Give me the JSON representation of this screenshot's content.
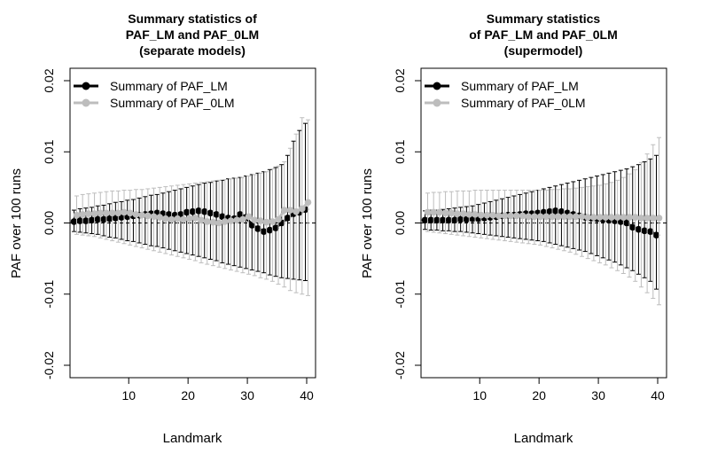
{
  "chart_data": [
    {
      "type": "line",
      "title": [
        "Summary statistics of",
        "PAF_LM and PAF_0LM",
        "(separate models)"
      ],
      "xlabel": "Landmark",
      "ylabel": "PAF over 100 runs",
      "xlim": [
        1,
        40
      ],
      "ylim": [
        -0.02,
        0.02
      ],
      "xticks": [
        "10",
        "20",
        "30",
        "40"
      ],
      "yticks": [
        "-0.02",
        "-0.01",
        "0.00",
        "0.01",
        "0.02"
      ],
      "legend_position": "top-left",
      "reference_line": 0,
      "series": [
        {
          "name": "Summary of PAF_LM",
          "color": "#000000",
          "x": [
            1,
            2,
            3,
            4,
            5,
            6,
            7,
            8,
            9,
            10,
            11,
            12,
            13,
            14,
            15,
            16,
            17,
            18,
            19,
            20,
            21,
            22,
            23,
            24,
            25,
            26,
            27,
            28,
            29,
            30,
            31,
            32,
            33,
            34,
            35,
            36,
            37,
            38,
            39,
            40
          ],
          "values": [
            0.0002,
            0.0003,
            0.0003,
            0.0004,
            0.0005,
            0.0005,
            0.0006,
            0.0007,
            0.0008,
            0.0009,
            0.001,
            0.0011,
            0.0012,
            0.0013,
            0.0014,
            0.0013,
            0.0012,
            0.0011,
            0.0012,
            0.0015,
            0.0016,
            0.0017,
            0.0016,
            0.0014,
            0.0012,
            0.0009,
            0.0007,
            0.0006,
            0.0012,
            0.0008,
            -0.0003,
            -0.0008,
            -0.0012,
            -0.001,
            -0.0007,
            0.0,
            0.0007,
            0.0013,
            0.0015,
            0.0019
          ],
          "lower": [
            -0.0012,
            -0.0013,
            -0.0014,
            -0.0015,
            -0.0016,
            -0.0018,
            -0.002,
            -0.0021,
            -0.0023,
            -0.0025,
            -0.0026,
            -0.0028,
            -0.003,
            -0.0032,
            -0.0033,
            -0.0035,
            -0.0037,
            -0.0039,
            -0.0041,
            -0.0043,
            -0.0045,
            -0.0047,
            -0.0049,
            -0.0051,
            -0.0053,
            -0.0056,
            -0.0058,
            -0.006,
            -0.0062,
            -0.0064,
            -0.0066,
            -0.0068,
            -0.007,
            -0.0073,
            -0.0075,
            -0.0077,
            -0.0078,
            -0.0079,
            -0.008,
            -0.0081
          ],
          "upper": [
            0.0018,
            0.002,
            0.0021,
            0.0022,
            0.0024,
            0.0025,
            0.0027,
            0.0029,
            0.003,
            0.0032,
            0.0033,
            0.0035,
            0.0037,
            0.0039,
            0.004,
            0.0042,
            0.0044,
            0.0046,
            0.0048,
            0.005,
            0.0052,
            0.0054,
            0.0056,
            0.0057,
            0.0059,
            0.006,
            0.0062,
            0.0063,
            0.0064,
            0.0066,
            0.0068,
            0.007,
            0.0072,
            0.0075,
            0.0078,
            0.0082,
            0.0095,
            0.0115,
            0.013,
            0.014
          ]
        },
        {
          "name": "Summary of PAF_0LM",
          "color": "#bdbdbd",
          "x": [
            1,
            2,
            3,
            4,
            5,
            6,
            7,
            8,
            9,
            10,
            11,
            12,
            13,
            14,
            15,
            16,
            17,
            18,
            19,
            20,
            21,
            22,
            23,
            24,
            25,
            26,
            27,
            28,
            29,
            30,
            31,
            32,
            33,
            34,
            35,
            36,
            37,
            38,
            39,
            40
          ],
          "values": [
            0.0011,
            0.0012,
            0.0013,
            0.0013,
            0.0014,
            0.0014,
            0.0014,
            0.0014,
            0.0015,
            0.0014,
            0.0012,
            0.0011,
            0.001,
            0.0009,
            0.0008,
            0.0006,
            0.0005,
            0.0006,
            0.0005,
            0.0006,
            0.0007,
            0.0004,
            0.0002,
            0.0001,
            0.0,
            0.0002,
            0.0003,
            0.0004,
            0.0005,
            0.0009,
            0.0004,
            0.0003,
            0.0001,
            0.0002,
            0.0005,
            0.0018,
            0.0018,
            0.0016,
            0.002,
            0.0029
          ],
          "lower": [
            -0.0016,
            -0.0017,
            -0.0018,
            -0.0019,
            -0.0021,
            -0.0023,
            -0.0025,
            -0.0027,
            -0.0029,
            -0.0031,
            -0.0033,
            -0.0035,
            -0.0037,
            -0.0039,
            -0.0041,
            -0.0043,
            -0.0045,
            -0.0047,
            -0.0049,
            -0.0051,
            -0.0053,
            -0.0056,
            -0.0058,
            -0.006,
            -0.0062,
            -0.0064,
            -0.0066,
            -0.0068,
            -0.007,
            -0.0072,
            -0.0074,
            -0.0077,
            -0.0079,
            -0.0082,
            -0.0086,
            -0.009,
            -0.0095,
            -0.0098,
            -0.01,
            -0.0102
          ],
          "upper": [
            0.0038,
            0.004,
            0.0041,
            0.0042,
            0.0043,
            0.0044,
            0.0045,
            0.0045,
            0.0046,
            0.0046,
            0.0047,
            0.0047,
            0.0048,
            0.0049,
            0.005,
            0.0051,
            0.0052,
            0.0053,
            0.0054,
            0.0055,
            0.0056,
            0.0057,
            0.0058,
            0.0059,
            0.006,
            0.0061,
            0.0062,
            0.0063,
            0.0064,
            0.0066,
            0.0068,
            0.007,
            0.0072,
            0.0076,
            0.008,
            0.0086,
            0.0105,
            0.0125,
            0.0148,
            0.0145
          ]
        }
      ]
    },
    {
      "type": "line",
      "title": [
        "Summary statistics",
        "of PAF_LM and PAF_0LM",
        "(supermodel)"
      ],
      "xlabel": "Landmark",
      "ylabel": "PAF over 100 runs",
      "xlim": [
        1,
        40
      ],
      "ylim": [
        -0.02,
        0.02
      ],
      "xticks": [
        "10",
        "20",
        "30",
        "40"
      ],
      "yticks": [
        "-0.02",
        "-0.01",
        "0.00",
        "0.01",
        "0.02"
      ],
      "legend_position": "top-left",
      "reference_line": 0,
      "series": [
        {
          "name": "Summary of PAF_LM",
          "color": "#000000",
          "x": [
            1,
            2,
            3,
            4,
            5,
            6,
            7,
            8,
            9,
            10,
            11,
            12,
            13,
            14,
            15,
            16,
            17,
            18,
            19,
            20,
            21,
            22,
            23,
            24,
            25,
            26,
            27,
            28,
            29,
            30,
            31,
            32,
            33,
            34,
            35,
            36,
            37,
            38,
            39,
            40
          ],
          "values": [
            0.0004,
            0.0004,
            0.0004,
            0.0004,
            0.0004,
            0.0004,
            0.0005,
            0.0005,
            0.0006,
            0.0006,
            0.0007,
            0.0008,
            0.0009,
            0.001,
            0.0011,
            0.0011,
            0.0012,
            0.0013,
            0.0013,
            0.0014,
            0.0015,
            0.0016,
            0.0017,
            0.0016,
            0.0014,
            0.0012,
            0.001,
            0.0008,
            0.0007,
            0.0006,
            0.0005,
            0.0004,
            0.0003,
            0.0002,
            0.0,
            -0.0006,
            -0.0009,
            -0.0011,
            -0.0012,
            -0.0017
          ],
          "lower": [
            -0.0009,
            -0.001,
            -0.001,
            -0.0011,
            -0.0011,
            -0.0012,
            -0.0012,
            -0.0013,
            -0.0014,
            -0.0015,
            -0.0016,
            -0.0017,
            -0.0018,
            -0.0019,
            -0.002,
            -0.0021,
            -0.0022,
            -0.0023,
            -0.0024,
            -0.0025,
            -0.0026,
            -0.0028,
            -0.003,
            -0.0032,
            -0.0034,
            -0.0036,
            -0.0038,
            -0.004,
            -0.0043,
            -0.0046,
            -0.0049,
            -0.0052,
            -0.0055,
            -0.0059,
            -0.0063,
            -0.0067,
            -0.0072,
            -0.0077,
            -0.0082,
            -0.0093
          ],
          "upper": [
            0.0017,
            0.0018,
            0.0018,
            0.0019,
            0.002,
            0.0021,
            0.0022,
            0.0023,
            0.0024,
            0.0026,
            0.0028,
            0.003,
            0.0032,
            0.0034,
            0.0036,
            0.0038,
            0.004,
            0.0042,
            0.0044,
            0.0046,
            0.0048,
            0.005,
            0.0052,
            0.0054,
            0.0056,
            0.0058,
            0.006,
            0.0062,
            0.0064,
            0.0066,
            0.0068,
            0.007,
            0.0072,
            0.0074,
            0.0076,
            0.0079,
            0.0082,
            0.0086,
            0.009,
            0.0095
          ]
        },
        {
          "name": "Summary of PAF_0LM",
          "color": "#bdbdbd",
          "x": [
            1,
            2,
            3,
            4,
            5,
            6,
            7,
            8,
            9,
            10,
            11,
            12,
            13,
            14,
            15,
            16,
            17,
            18,
            19,
            20,
            21,
            22,
            23,
            24,
            25,
            26,
            27,
            28,
            29,
            30,
            31,
            32,
            33,
            34,
            35,
            36,
            37,
            38,
            39,
            40
          ],
          "values": [
            0.0015,
            0.0015,
            0.0015,
            0.0014,
            0.0014,
            0.0013,
            0.0013,
            0.0012,
            0.0012,
            0.0011,
            0.0011,
            0.0011,
            0.001,
            0.001,
            0.001,
            0.001,
            0.001,
            0.0009,
            0.0009,
            0.0009,
            0.0009,
            0.0009,
            0.0009,
            0.0009,
            0.0009,
            0.0009,
            0.0009,
            0.0008,
            0.0008,
            0.0008,
            0.0008,
            0.0008,
            0.0008,
            0.0008,
            0.0008,
            0.0008,
            0.0007,
            0.0007,
            0.0007,
            0.0007
          ],
          "lower": [
            -0.0012,
            -0.0013,
            -0.0014,
            -0.0015,
            -0.0016,
            -0.0017,
            -0.0018,
            -0.0019,
            -0.002,
            -0.0021,
            -0.0022,
            -0.0023,
            -0.0024,
            -0.0025,
            -0.0026,
            -0.0027,
            -0.0028,
            -0.0029,
            -0.003,
            -0.0031,
            -0.0033,
            -0.0035,
            -0.0037,
            -0.0039,
            -0.0041,
            -0.0044,
            -0.0047,
            -0.005,
            -0.0053,
            -0.0056,
            -0.0059,
            -0.0063,
            -0.0067,
            -0.0071,
            -0.0076,
            -0.0082,
            -0.009,
            -0.0098,
            -0.0106,
            -0.0115
          ],
          "upper": [
            0.0042,
            0.0043,
            0.0043,
            0.0044,
            0.0044,
            0.0045,
            0.0045,
            0.0045,
            0.0046,
            0.0046,
            0.0046,
            0.0046,
            0.0046,
            0.0046,
            0.0046,
            0.0046,
            0.0046,
            0.0046,
            0.0046,
            0.0046,
            0.0046,
            0.0047,
            0.0047,
            0.0048,
            0.0048,
            0.0049,
            0.005,
            0.0051,
            0.0052,
            0.0053,
            0.0055,
            0.0057,
            0.006,
            0.0064,
            0.0069,
            0.0075,
            0.0085,
            0.0097,
            0.011,
            0.012
          ]
        }
      ]
    }
  ]
}
